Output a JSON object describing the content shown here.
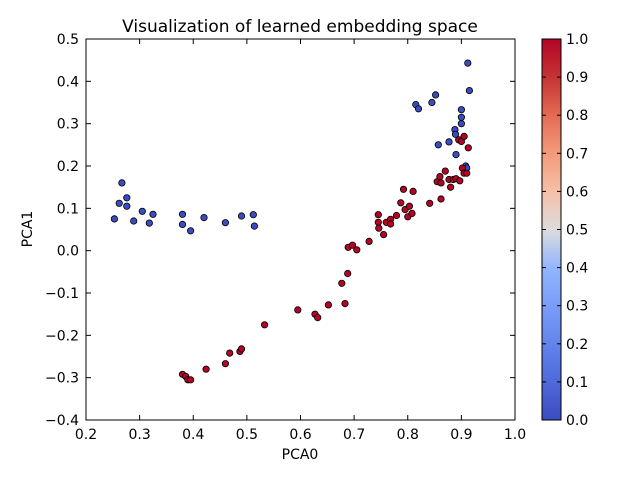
{
  "chart_data": {
    "type": "scatter",
    "title": "Visualization of learned embedding space",
    "xlabel": "PCA0",
    "ylabel": "PCA1",
    "xlim": [
      0.2,
      1.0
    ],
    "ylim": [
      -0.4,
      0.5
    ],
    "xticks": [
      "0.2",
      "0.3",
      "0.4",
      "0.5",
      "0.6",
      "0.7",
      "0.8",
      "0.9",
      "1.0"
    ],
    "yticks": [
      "−0.4",
      "−0.3",
      "−0.2",
      "−0.1",
      "0.0",
      "0.1",
      "0.2",
      "0.3",
      "0.4",
      "0.5"
    ],
    "grid": false,
    "colormap": "coolwarm",
    "colorbar": {
      "min": 0.0,
      "max": 1.0,
      "ticks": [
        "0.0",
        "0.1",
        "0.2",
        "0.3",
        "0.4",
        "0.5",
        "0.6",
        "0.7",
        "0.8",
        "0.9",
        "1.0"
      ]
    },
    "series": [
      {
        "color_value": 0.0,
        "color": "#3b4cc0",
        "points": [
          [
            0.253,
            0.075
          ],
          [
            0.262,
            0.112
          ],
          [
            0.267,
            0.16
          ],
          [
            0.276,
            0.105
          ],
          [
            0.276,
            0.125
          ],
          [
            0.289,
            0.07
          ],
          [
            0.305,
            0.093
          ],
          [
            0.318,
            0.065
          ],
          [
            0.325,
            0.086
          ],
          [
            0.38,
            0.086
          ],
          [
            0.38,
            0.062
          ],
          [
            0.395,
            0.047
          ],
          [
            0.42,
            0.078
          ],
          [
            0.46,
            0.066
          ],
          [
            0.49,
            0.082
          ],
          [
            0.512,
            0.085
          ],
          [
            0.514,
            0.058
          ],
          [
            0.815,
            0.345
          ],
          [
            0.82,
            0.335
          ],
          [
            0.845,
            0.35
          ],
          [
            0.852,
            0.368
          ],
          [
            0.857,
            0.25
          ],
          [
            0.877,
            0.257
          ],
          [
            0.888,
            0.286
          ],
          [
            0.889,
            0.275
          ],
          [
            0.89,
            0.227
          ],
          [
            0.9,
            0.333
          ],
          [
            0.9,
            0.315
          ],
          [
            0.9,
            0.3
          ],
          [
            0.908,
            0.2
          ],
          [
            0.91,
            0.195
          ],
          [
            0.912,
            0.443
          ],
          [
            0.915,
            0.378
          ]
        ]
      },
      {
        "color_value": 1.0,
        "color": "#b40426",
        "points": [
          [
            0.38,
            -0.292
          ],
          [
            0.386,
            -0.297
          ],
          [
            0.39,
            -0.305
          ],
          [
            0.395,
            -0.305
          ],
          [
            0.424,
            -0.28
          ],
          [
            0.46,
            -0.267
          ],
          [
            0.468,
            -0.242
          ],
          [
            0.487,
            -0.238
          ],
          [
            0.49,
            -0.232
          ],
          [
            0.533,
            -0.175
          ],
          [
            0.595,
            -0.14
          ],
          [
            0.627,
            -0.15
          ],
          [
            0.632,
            -0.158
          ],
          [
            0.652,
            -0.128
          ],
          [
            0.677,
            -0.077
          ],
          [
            0.683,
            -0.125
          ],
          [
            0.688,
            -0.054
          ],
          [
            0.689,
            0.008
          ],
          [
            0.697,
            0.013
          ],
          [
            0.705,
            0.002
          ],
          [
            0.728,
            0.022
          ],
          [
            0.745,
            0.085
          ],
          [
            0.745,
            0.067
          ],
          [
            0.746,
            0.053
          ],
          [
            0.755,
            0.038
          ],
          [
            0.76,
            0.067
          ],
          [
            0.768,
            0.074
          ],
          [
            0.768,
            0.063
          ],
          [
            0.779,
            0.083
          ],
          [
            0.787,
            0.113
          ],
          [
            0.792,
            0.145
          ],
          [
            0.795,
            0.097
          ],
          [
            0.8,
            0.08
          ],
          [
            0.803,
            0.105
          ],
          [
            0.808,
            0.088
          ],
          [
            0.81,
            0.14
          ],
          [
            0.841,
            0.112
          ],
          [
            0.855,
            0.163
          ],
          [
            0.86,
            0.175
          ],
          [
            0.862,
            0.16
          ],
          [
            0.862,
            0.122
          ],
          [
            0.87,
            0.188
          ],
          [
            0.877,
            0.168
          ],
          [
            0.88,
            0.15
          ],
          [
            0.885,
            0.168
          ],
          [
            0.89,
            0.17
          ],
          [
            0.895,
            0.262
          ],
          [
            0.897,
            0.165
          ],
          [
            0.9,
            0.258
          ],
          [
            0.902,
            0.195
          ],
          [
            0.905,
            0.27
          ],
          [
            0.905,
            0.183
          ],
          [
            0.91,
            0.183
          ],
          [
            0.913,
            0.243
          ]
        ]
      }
    ]
  }
}
